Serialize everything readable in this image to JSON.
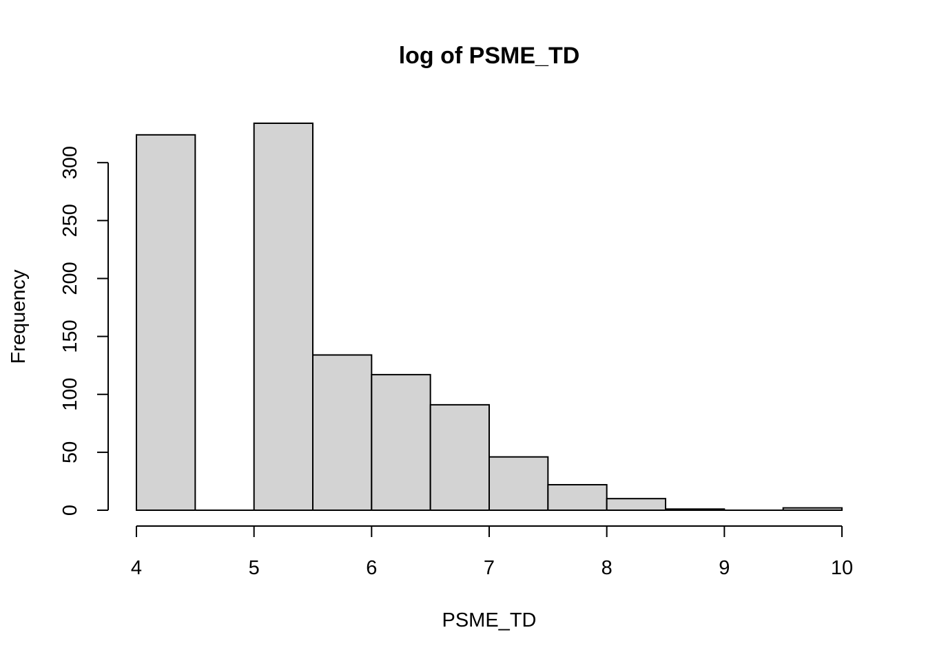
{
  "chart_data": {
    "type": "bar",
    "subtype": "histogram",
    "title": "log of PSME_TD",
    "xlabel": "PSME_TD",
    "ylabel": "Frequency",
    "bins": [
      {
        "start": 4.0,
        "end": 4.5,
        "count": 324
      },
      {
        "start": 4.5,
        "end": 5.0,
        "count": 0
      },
      {
        "start": 5.0,
        "end": 5.5,
        "count": 334
      },
      {
        "start": 5.5,
        "end": 6.0,
        "count": 134
      },
      {
        "start": 6.0,
        "end": 6.5,
        "count": 117
      },
      {
        "start": 6.5,
        "end": 7.0,
        "count": 91
      },
      {
        "start": 7.0,
        "end": 7.5,
        "count": 46
      },
      {
        "start": 7.5,
        "end": 8.0,
        "count": 22
      },
      {
        "start": 8.0,
        "end": 8.5,
        "count": 10
      },
      {
        "start": 8.5,
        "end": 9.0,
        "count": 1
      },
      {
        "start": 9.0,
        "end": 9.5,
        "count": 0
      },
      {
        "start": 9.5,
        "end": 10.0,
        "count": 2
      }
    ],
    "xlim": [
      4,
      10
    ],
    "ylim": [
      0,
      334
    ],
    "x_ticks": [
      4,
      5,
      6,
      7,
      8,
      9,
      10
    ],
    "x_tick_labels": [
      "4",
      "5",
      "6",
      "7",
      "8",
      "9",
      "10"
    ],
    "y_ticks": [
      0,
      50,
      100,
      150,
      200,
      250,
      300
    ],
    "y_tick_labels": [
      "0",
      "50",
      "100",
      "150",
      "200",
      "250",
      "300"
    ],
    "bar_fill": "#d3d3d3",
    "bar_stroke": "#000000",
    "grid": false,
    "legend": "none"
  }
}
